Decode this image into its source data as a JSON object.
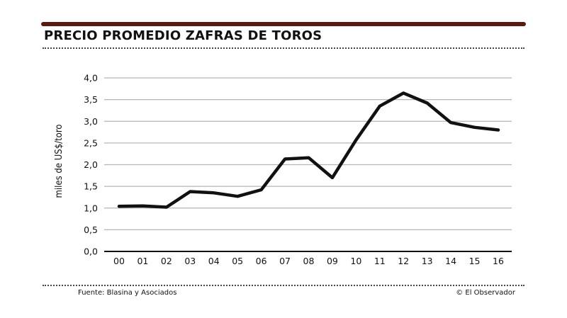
{
  "chart_data": {
    "type": "line",
    "title": "PRECIO PROMEDIO ZAFRAS DE TOROS",
    "ylabel": "miles de US$/toro",
    "xlabel": "",
    "categories": [
      "00",
      "01",
      "02",
      "03",
      "04",
      "05",
      "06",
      "07",
      "08",
      "09",
      "10",
      "11",
      "12",
      "13",
      "14",
      "15",
      "16"
    ],
    "values": [
      1.04,
      1.05,
      1.02,
      1.38,
      1.35,
      1.27,
      1.42,
      2.13,
      2.16,
      1.7,
      2.57,
      3.35,
      3.65,
      3.42,
      2.97,
      2.86,
      2.8
    ],
    "ylim": [
      0,
      4
    ],
    "yticks": [
      "0,0",
      "0,5",
      "1,0",
      "1,5",
      "2,0",
      "2,5",
      "3,0",
      "3,5",
      "4,0"
    ],
    "grid": true,
    "line_color": "#111111",
    "grid_color": "#b5b5b5"
  },
  "footer": {
    "source": "Fuente: Blasina y Asociados",
    "credit": "© El Observador"
  },
  "colors": {
    "top_bar": "#5a1a12",
    "text": "#111111"
  }
}
